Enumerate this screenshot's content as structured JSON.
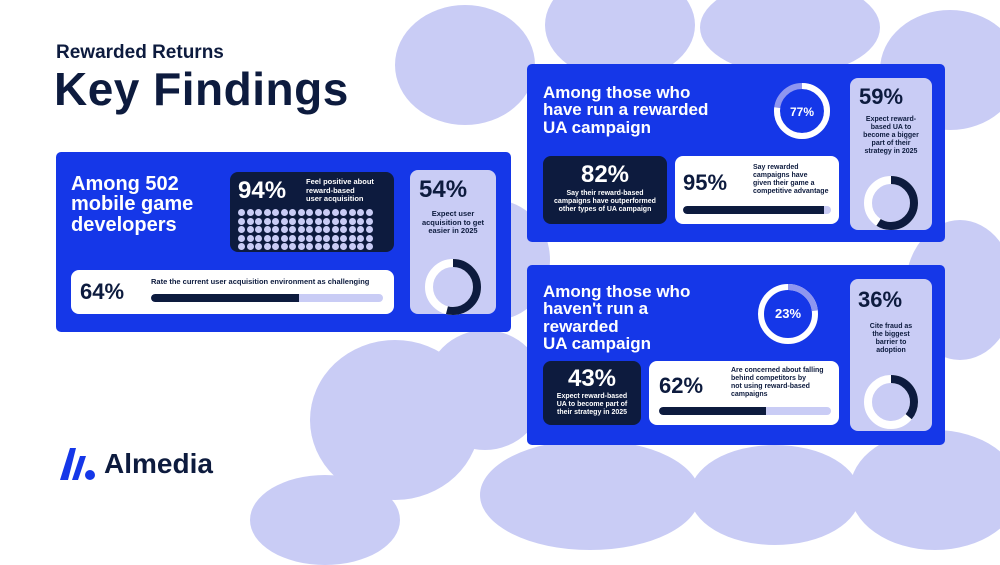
{
  "header": {
    "subtitle": "Rewarded Returns",
    "title": "Key Findings"
  },
  "panel_developers": {
    "title_lines": [
      "Among 502",
      "mobile game",
      "developers"
    ],
    "stat_positive": {
      "value": "94%",
      "text_lines": [
        "Feel positive about",
        "reward-based",
        "user acquisition"
      ],
      "fraction": 0.94
    },
    "stat_challenging": {
      "value": "64%",
      "text": "Rate the current user acquisition environment as challenging",
      "fraction": 0.64
    },
    "stat_easier": {
      "value": "54%",
      "text_lines": [
        "Expect user",
        "acquisition to get",
        "easier in 2025"
      ],
      "fraction": 0.54
    }
  },
  "panel_have_run": {
    "title_lines": [
      "Among those who",
      "have run a rewarded",
      "UA campaign"
    ],
    "ring": {
      "value": "77%",
      "fraction": 0.77
    },
    "stat_outperformed": {
      "value": "82%",
      "text_lines": [
        "Say their reward-based",
        "campaigns have outperformed",
        "other types of UA campaign"
      ]
    },
    "stat_advantage": {
      "value": "95%",
      "text_lines": [
        "Say rewarded",
        "campaigns have",
        "given their game a",
        "competitive advantage"
      ],
      "fraction": 0.95
    },
    "stat_bigger": {
      "value": "59%",
      "text_lines": [
        "Expect reward-",
        "based UA to",
        "become a bigger",
        "part of their",
        "strategy in 2025"
      ],
      "fraction": 0.59
    }
  },
  "panel_not_run": {
    "title_lines": [
      "Among those who",
      "haven't run a",
      "rewarded",
      "UA campaign"
    ],
    "ring": {
      "value": "23%",
      "fraction": 0.23
    },
    "stat_fraud": {
      "value": "36%",
      "text_lines": [
        "Cite fraud as",
        "the biggest",
        "barrier to",
        "adoption"
      ],
      "fraction": 0.36
    },
    "stat_expect": {
      "value": "43%",
      "text_lines": [
        "Expect reward-based",
        "UA to become part of",
        "their strategy in 2025"
      ]
    },
    "stat_falling": {
      "value": "62%",
      "text_lines": [
        "Are concerned about falling",
        "behind competitors by",
        "not using reward-based",
        "campaigns"
      ],
      "fraction": 0.62
    }
  },
  "logo": {
    "name": "Almedia"
  },
  "colors": {
    "brand_blue": "#1537e8",
    "navy": "#0d1b3e",
    "lavender": "#c9ccf5"
  }
}
